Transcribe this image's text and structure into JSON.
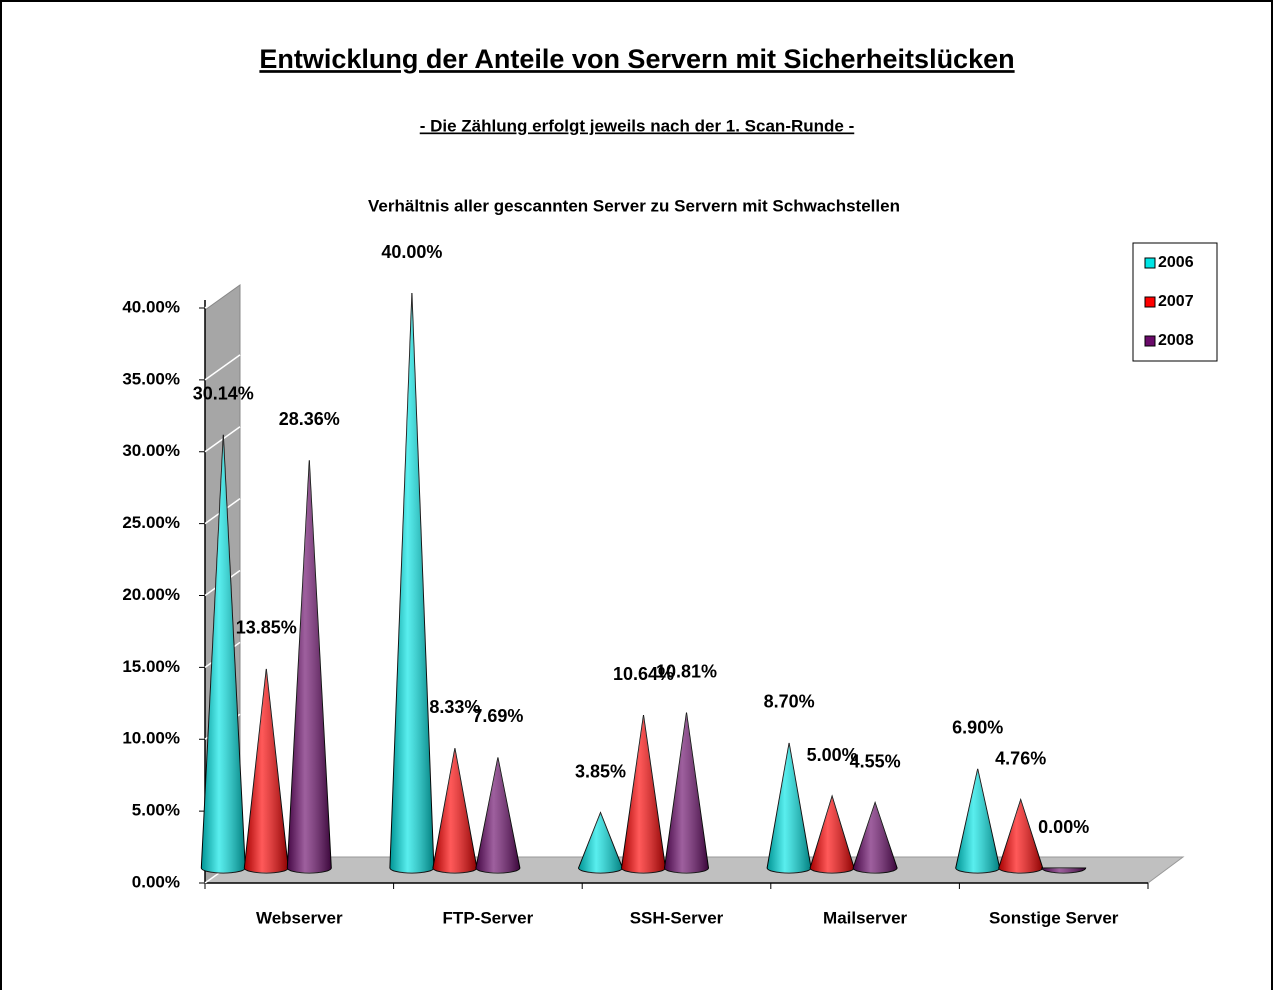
{
  "chart_data": {
    "type": "cone",
    "title": "Entwicklung der Anteile von Servern mit Sicherheitslücken",
    "subtitle": "- Die Zählung  erfolgt  jeweils  nach der 1.  Scan-Runde -",
    "chart_title": "Verhältnis aller gescannten Server zu Servern mit Schwachstellen",
    "categories": [
      "Webserver",
      "FTP-Server",
      "SSH-Server",
      "Mailserver",
      "Sonstige Server"
    ],
    "series": [
      {
        "name": "2006",
        "color": "#00e5e5",
        "values": [
          30.14,
          40.0,
          3.85,
          8.7,
          6.9
        ],
        "value_labels": [
          "30.14%",
          "40.00%",
          "3.85%",
          "8.70%",
          "6.90%"
        ]
      },
      {
        "name": "2007",
        "color": "#ff0000",
        "values": [
          13.85,
          8.33,
          10.64,
          5.0,
          4.76
        ],
        "value_labels": [
          "13.85%",
          "8.33%",
          "10.64%",
          "5.00%",
          "4.76%"
        ]
      },
      {
        "name": "2008",
        "color": "#6a0a6a",
        "values": [
          28.36,
          7.69,
          10.81,
          4.55,
          0.0
        ],
        "value_labels": [
          "28.36%",
          "7.69%",
          "10.81%",
          "4.55%",
          "0.00%"
        ]
      }
    ],
    "ylim": [
      0,
      40
    ],
    "yticks": [
      {
        "value": 0,
        "label": "0.00%"
      },
      {
        "value": 5,
        "label": "5.00%"
      },
      {
        "value": 10,
        "label": "10.00%"
      },
      {
        "value": 15,
        "label": "15.00%"
      },
      {
        "value": 20,
        "label": "20.00%"
      },
      {
        "value": 25,
        "label": "25.00%"
      },
      {
        "value": 30,
        "label": "30.00%"
      },
      {
        "value": 35,
        "label": "35.00%"
      },
      {
        "value": 40,
        "label": "40.00%"
      }
    ],
    "legend": "right"
  }
}
